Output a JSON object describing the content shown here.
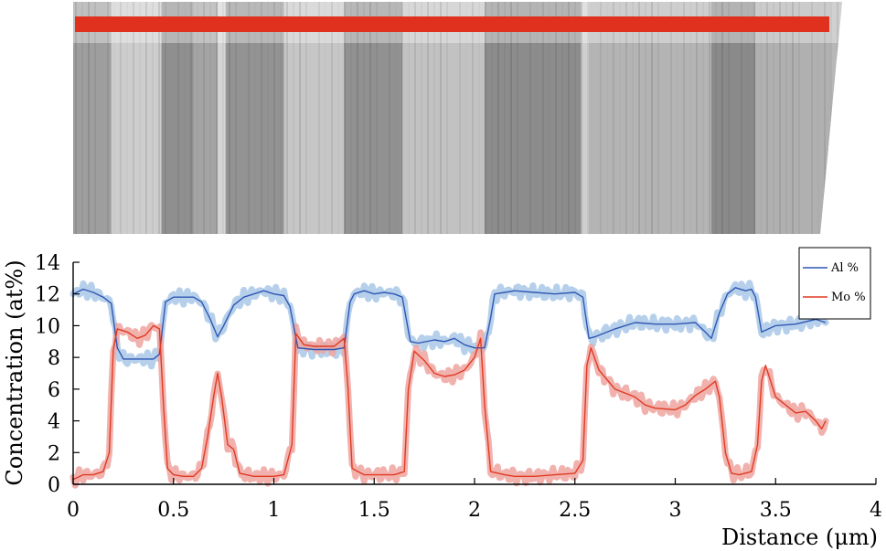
{
  "chart_data": {
    "type": "line",
    "xlabel": "Distance (μm)",
    "ylabel": "Concentration (at%)",
    "xlim": [
      0,
      4
    ],
    "ylim": [
      0,
      14
    ],
    "x_ticks": [
      "0",
      "0.5",
      "1",
      "1.5",
      "2",
      "2.5",
      "3",
      "3.5",
      "4"
    ],
    "y_ticks": [
      "0",
      "2",
      "4",
      "6",
      "8",
      "10",
      "12",
      "14"
    ],
    "grid": false,
    "legend_position": "top-right",
    "series": [
      {
        "name": "Al %",
        "color": "#2f57b3",
        "band_color": "#a9c8e8",
        "points": [
          [
            0.0,
            12.0
          ],
          [
            0.05,
            12.3
          ],
          [
            0.1,
            12.1
          ],
          [
            0.15,
            11.8
          ],
          [
            0.19,
            11.4
          ],
          [
            0.22,
            8.6
          ],
          [
            0.25,
            7.9
          ],
          [
            0.3,
            7.9
          ],
          [
            0.35,
            7.9
          ],
          [
            0.4,
            7.9
          ],
          [
            0.43,
            8.2
          ],
          [
            0.46,
            11.5
          ],
          [
            0.5,
            11.8
          ],
          [
            0.55,
            11.8
          ],
          [
            0.6,
            11.8
          ],
          [
            0.64,
            11.5
          ],
          [
            0.68,
            10.5
          ],
          [
            0.72,
            9.3
          ],
          [
            0.75,
            10.0
          ],
          [
            0.8,
            11.3
          ],
          [
            0.85,
            11.8
          ],
          [
            0.9,
            12.0
          ],
          [
            0.95,
            12.2
          ],
          [
            1.0,
            12.0
          ],
          [
            1.05,
            11.9
          ],
          [
            1.08,
            11.2
          ],
          [
            1.12,
            8.6
          ],
          [
            1.2,
            8.5
          ],
          [
            1.3,
            8.5
          ],
          [
            1.35,
            8.6
          ],
          [
            1.38,
            11.5
          ],
          [
            1.4,
            12.0
          ],
          [
            1.45,
            12.2
          ],
          [
            1.5,
            12.0
          ],
          [
            1.55,
            12.1
          ],
          [
            1.6,
            12.0
          ],
          [
            1.64,
            11.8
          ],
          [
            1.68,
            9.0
          ],
          [
            1.72,
            8.9
          ],
          [
            1.8,
            9.1
          ],
          [
            1.85,
            9.0
          ],
          [
            1.9,
            9.2
          ],
          [
            1.95,
            8.8
          ],
          [
            2.0,
            8.6
          ],
          [
            2.05,
            8.6
          ],
          [
            2.08,
            10.5
          ],
          [
            2.1,
            12.0
          ],
          [
            2.15,
            12.1
          ],
          [
            2.2,
            12.2
          ],
          [
            2.3,
            12.1
          ],
          [
            2.4,
            12.0
          ],
          [
            2.5,
            12.1
          ],
          [
            2.54,
            11.8
          ],
          [
            2.57,
            9.2
          ],
          [
            2.6,
            9.3
          ],
          [
            2.7,
            9.8
          ],
          [
            2.8,
            10.2
          ],
          [
            2.9,
            10.1
          ],
          [
            3.0,
            10.1
          ],
          [
            3.1,
            10.2
          ],
          [
            3.15,
            9.6
          ],
          [
            3.18,
            9.2
          ],
          [
            3.22,
            10.8
          ],
          [
            3.26,
            12.0
          ],
          [
            3.3,
            12.4
          ],
          [
            3.35,
            12.2
          ],
          [
            3.38,
            12.3
          ],
          [
            3.4,
            11.8
          ],
          [
            3.43,
            9.6
          ],
          [
            3.5,
            10.0
          ],
          [
            3.6,
            10.1
          ],
          [
            3.7,
            10.4
          ],
          [
            3.75,
            10.2
          ]
        ]
      },
      {
        "name": "Mo %",
        "color": "#e13a22",
        "band_color": "#eea5a0",
        "points": [
          [
            0.0,
            0.3
          ],
          [
            0.05,
            0.6
          ],
          [
            0.1,
            0.6
          ],
          [
            0.15,
            0.8
          ],
          [
            0.18,
            2.0
          ],
          [
            0.2,
            8.5
          ],
          [
            0.22,
            9.8
          ],
          [
            0.27,
            9.6
          ],
          [
            0.32,
            9.2
          ],
          [
            0.36,
            9.4
          ],
          [
            0.4,
            10.0
          ],
          [
            0.43,
            9.8
          ],
          [
            0.45,
            5.0
          ],
          [
            0.47,
            1.0
          ],
          [
            0.5,
            0.6
          ],
          [
            0.55,
            0.5
          ],
          [
            0.6,
            0.5
          ],
          [
            0.64,
            1.0
          ],
          [
            0.67,
            3.0
          ],
          [
            0.7,
            5.5
          ],
          [
            0.72,
            7.0
          ],
          [
            0.74,
            5.5
          ],
          [
            0.77,
            2.5
          ],
          [
            0.8,
            2.2
          ],
          [
            0.83,
            0.7
          ],
          [
            0.9,
            0.5
          ],
          [
            0.95,
            0.5
          ],
          [
            1.0,
            0.5
          ],
          [
            1.05,
            0.6
          ],
          [
            1.09,
            2.5
          ],
          [
            1.11,
            9.5
          ],
          [
            1.15,
            8.8
          ],
          [
            1.2,
            8.7
          ],
          [
            1.3,
            8.7
          ],
          [
            1.35,
            9.2
          ],
          [
            1.37,
            6.0
          ],
          [
            1.39,
            1.0
          ],
          [
            1.45,
            0.6
          ],
          [
            1.5,
            0.6
          ],
          [
            1.6,
            0.6
          ],
          [
            1.65,
            0.8
          ],
          [
            1.67,
            6.0
          ],
          [
            1.7,
            8.4
          ],
          [
            1.75,
            7.8
          ],
          [
            1.8,
            7.0
          ],
          [
            1.85,
            6.8
          ],
          [
            1.9,
            6.9
          ],
          [
            1.95,
            7.2
          ],
          [
            2.0,
            8.0
          ],
          [
            2.03,
            9.2
          ],
          [
            2.05,
            5.0
          ],
          [
            2.08,
            0.8
          ],
          [
            2.15,
            0.6
          ],
          [
            2.2,
            0.5
          ],
          [
            2.3,
            0.5
          ],
          [
            2.4,
            0.6
          ],
          [
            2.5,
            0.7
          ],
          [
            2.54,
            1.5
          ],
          [
            2.56,
            7.5
          ],
          [
            2.58,
            8.6
          ],
          [
            2.62,
            7.2
          ],
          [
            2.7,
            6.0
          ],
          [
            2.8,
            5.5
          ],
          [
            2.85,
            5.0
          ],
          [
            2.9,
            4.8
          ],
          [
            3.0,
            4.7
          ],
          [
            3.05,
            5.0
          ],
          [
            3.1,
            5.6
          ],
          [
            3.15,
            6.0
          ],
          [
            3.2,
            6.5
          ],
          [
            3.22,
            5.5
          ],
          [
            3.25,
            2.0
          ],
          [
            3.28,
            0.7
          ],
          [
            3.32,
            0.6
          ],
          [
            3.38,
            0.8
          ],
          [
            3.41,
            2.5
          ],
          [
            3.43,
            6.5
          ],
          [
            3.45,
            7.5
          ],
          [
            3.5,
            5.5
          ],
          [
            3.55,
            5.0
          ],
          [
            3.6,
            4.5
          ],
          [
            3.65,
            4.6
          ],
          [
            3.7,
            4.0
          ],
          [
            3.73,
            3.5
          ],
          [
            3.75,
            4.0
          ]
        ]
      }
    ]
  },
  "micrograph": {
    "colors": {
      "scan_line": "#e0301e",
      "background": "#b7b7b7"
    },
    "bands": [
      {
        "x0": 0.0,
        "x1": 0.19,
        "shade": "#9e9e9e"
      },
      {
        "x0": 0.19,
        "x1": 0.44,
        "shade": "#cdcdcd"
      },
      {
        "x0": 0.44,
        "x1": 0.6,
        "shade": "#8f8f8f"
      },
      {
        "x0": 0.6,
        "x1": 0.72,
        "shade": "#a4a4a4"
      },
      {
        "x0": 0.72,
        "x1": 0.76,
        "shade": "#d4d4d4"
      },
      {
        "x0": 0.76,
        "x1": 1.05,
        "shade": "#939393"
      },
      {
        "x0": 1.05,
        "x1": 1.35,
        "shade": "#c6c6c6"
      },
      {
        "x0": 1.35,
        "x1": 1.64,
        "shade": "#919191"
      },
      {
        "x0": 1.64,
        "x1": 2.05,
        "shade": "#c2c2c2"
      },
      {
        "x0": 2.05,
        "x1": 2.53,
        "shade": "#8c8c8c"
      },
      {
        "x0": 2.53,
        "x1": 2.57,
        "shade": "#cfcfcf"
      },
      {
        "x0": 2.57,
        "x1": 3.18,
        "shade": "#b4b4b4"
      },
      {
        "x0": 3.18,
        "x1": 3.4,
        "shade": "#8a8a8a"
      },
      {
        "x0": 3.4,
        "x1": 3.78,
        "shade": "#b0b0b0"
      }
    ]
  }
}
